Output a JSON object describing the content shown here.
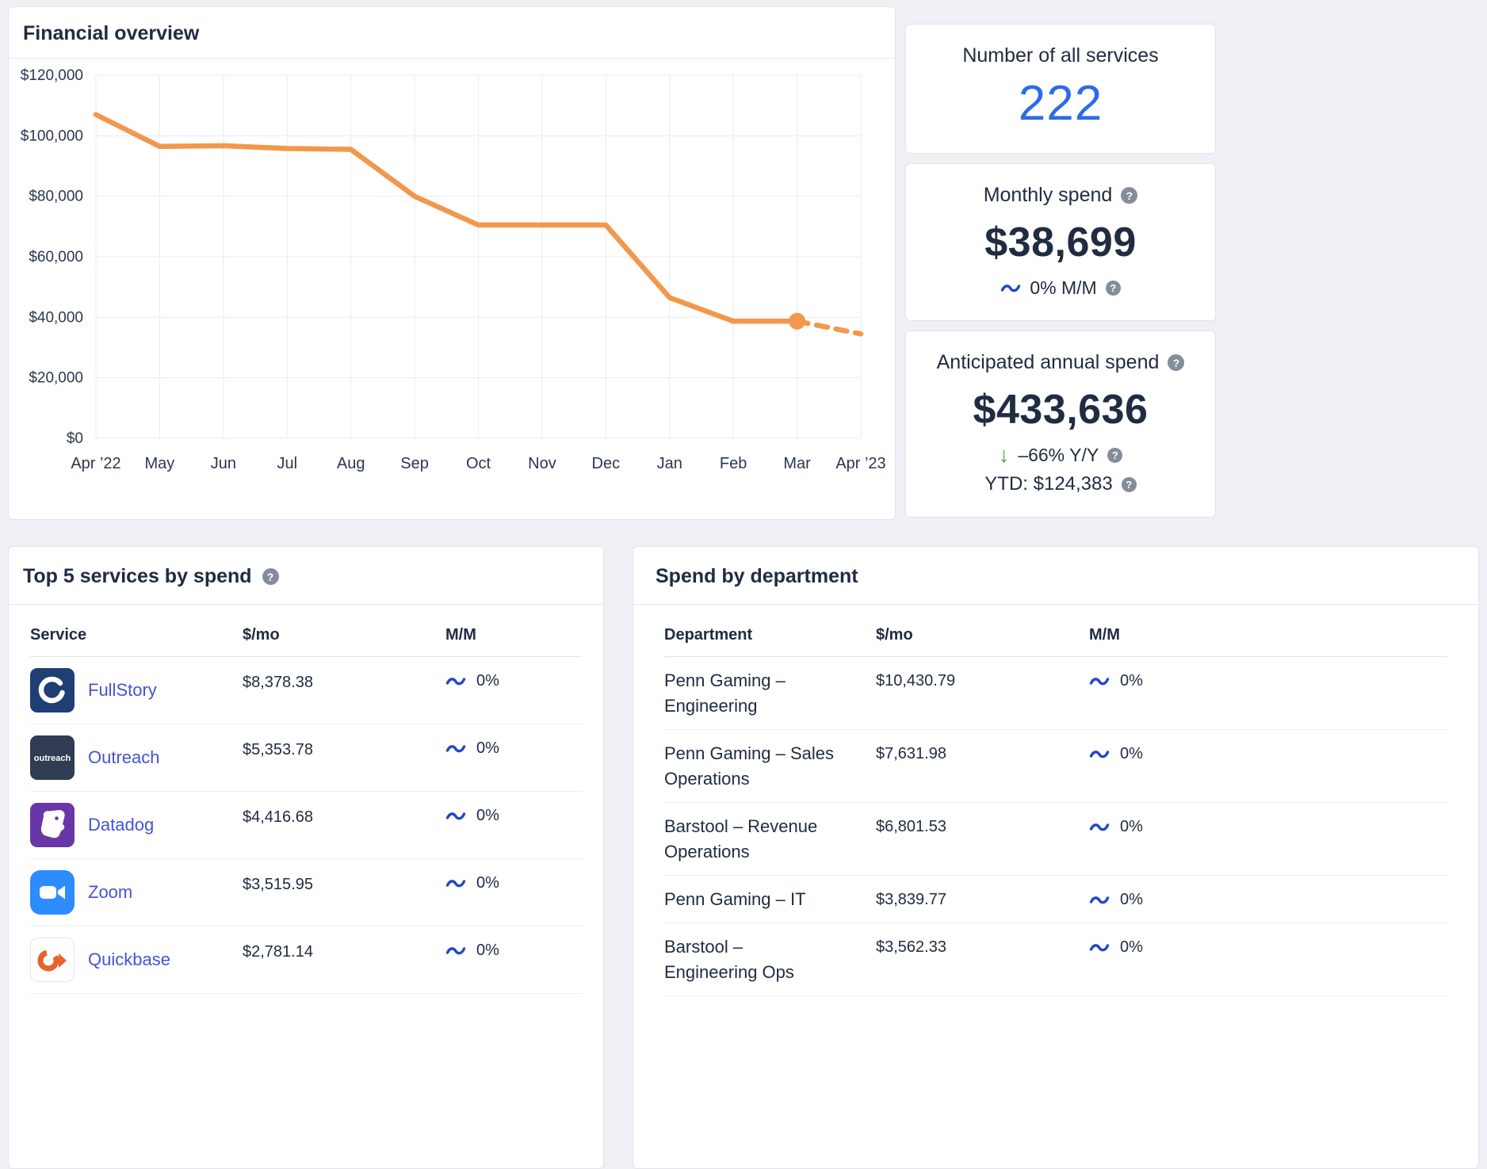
{
  "financial": {
    "title": "Financial overview"
  },
  "stats": {
    "services": {
      "title": "Number of all services",
      "value": "222"
    },
    "monthly": {
      "title": "Monthly spend",
      "value": "$38,699",
      "change": "0% M/M"
    },
    "annual": {
      "title": "Anticipated annual spend",
      "value": "$433,636",
      "change": "–66% Y/Y",
      "ytd": "YTD: $124,383"
    }
  },
  "top_services": {
    "title": "Top 5 services by spend",
    "columns": [
      "Service",
      "$/mo",
      "M/M"
    ],
    "rows": [
      {
        "name": "FullStory",
        "spend": "$8,378.38",
        "mm": "0%",
        "icon": "fullstory-icon"
      },
      {
        "name": "Outreach",
        "spend": "$5,353.78",
        "mm": "0%",
        "icon": "outreach-icon"
      },
      {
        "name": "Datadog",
        "spend": "$4,416.68",
        "mm": "0%",
        "icon": "datadog-icon"
      },
      {
        "name": "Zoom",
        "spend": "$3,515.95",
        "mm": "0%",
        "icon": "zoom-icon"
      },
      {
        "name": "Quickbase",
        "spend": "$2,781.14",
        "mm": "0%",
        "icon": "quickbase-icon"
      }
    ]
  },
  "departments": {
    "title": "Spend by department",
    "columns": [
      "Department",
      "$/mo",
      "M/M"
    ],
    "rows": [
      {
        "name": "Penn Gaming – Engineering",
        "spend": "$10,430.79",
        "mm": "0%"
      },
      {
        "name": "Penn Gaming – Sales Operations",
        "spend": "$7,631.98",
        "mm": "0%"
      },
      {
        "name": "Barstool – Revenue Operations",
        "spend": "$6,801.53",
        "mm": "0%"
      },
      {
        "name": "Penn Gaming – IT",
        "spend": "$3,839.77",
        "mm": "0%"
      },
      {
        "name": "Barstool – Engineering Ops",
        "spend": "$3,562.33",
        "mm": "0%"
      }
    ]
  },
  "chart_data": {
    "type": "line",
    "title": "Financial overview",
    "x": [
      "Apr ’22",
      "May",
      "Jun",
      "Jul",
      "Aug",
      "Sep",
      "Oct",
      "Nov",
      "Dec",
      "Jan",
      "Feb",
      "Mar",
      "Apr ’23"
    ],
    "series": [
      {
        "name": "Monthly spend",
        "values": [
          107000,
          96500,
          96700,
          95800,
          95500,
          80000,
          70500,
          70500,
          70500,
          46500,
          38699,
          38699,
          34500
        ]
      }
    ],
    "solid_until_index": 11,
    "marker_index": 11,
    "ylim": [
      0,
      120000
    ],
    "y_ticks": [
      {
        "value": 0,
        "label": "$0"
      },
      {
        "value": 20000,
        "label": "$20,000"
      },
      {
        "value": 40000,
        "label": "$40,000"
      },
      {
        "value": 60000,
        "label": "$60,000"
      },
      {
        "value": 80000,
        "label": "$80,000"
      },
      {
        "value": 100000,
        "label": "$100,000"
      },
      {
        "value": 120000,
        "label": "$120,000"
      }
    ],
    "grid": true,
    "line_color": "#F2984C",
    "legend": "none"
  },
  "icons": {
    "outreach_wordmark": "outreach",
    "help": "question-mark-circle-icon",
    "trend_flat": "tilde-wave-icon",
    "trend_down": "down-arrow-icon"
  },
  "colors": {
    "background": "#EEF0F4",
    "chart_line": "#F2984C",
    "link": "#4353D9",
    "stat_value_blue": "#2C6CE8",
    "trend_flat_blue": "#2247C9",
    "trend_down_green": "#3DA553",
    "help_icon_gray": "#838D9C"
  }
}
